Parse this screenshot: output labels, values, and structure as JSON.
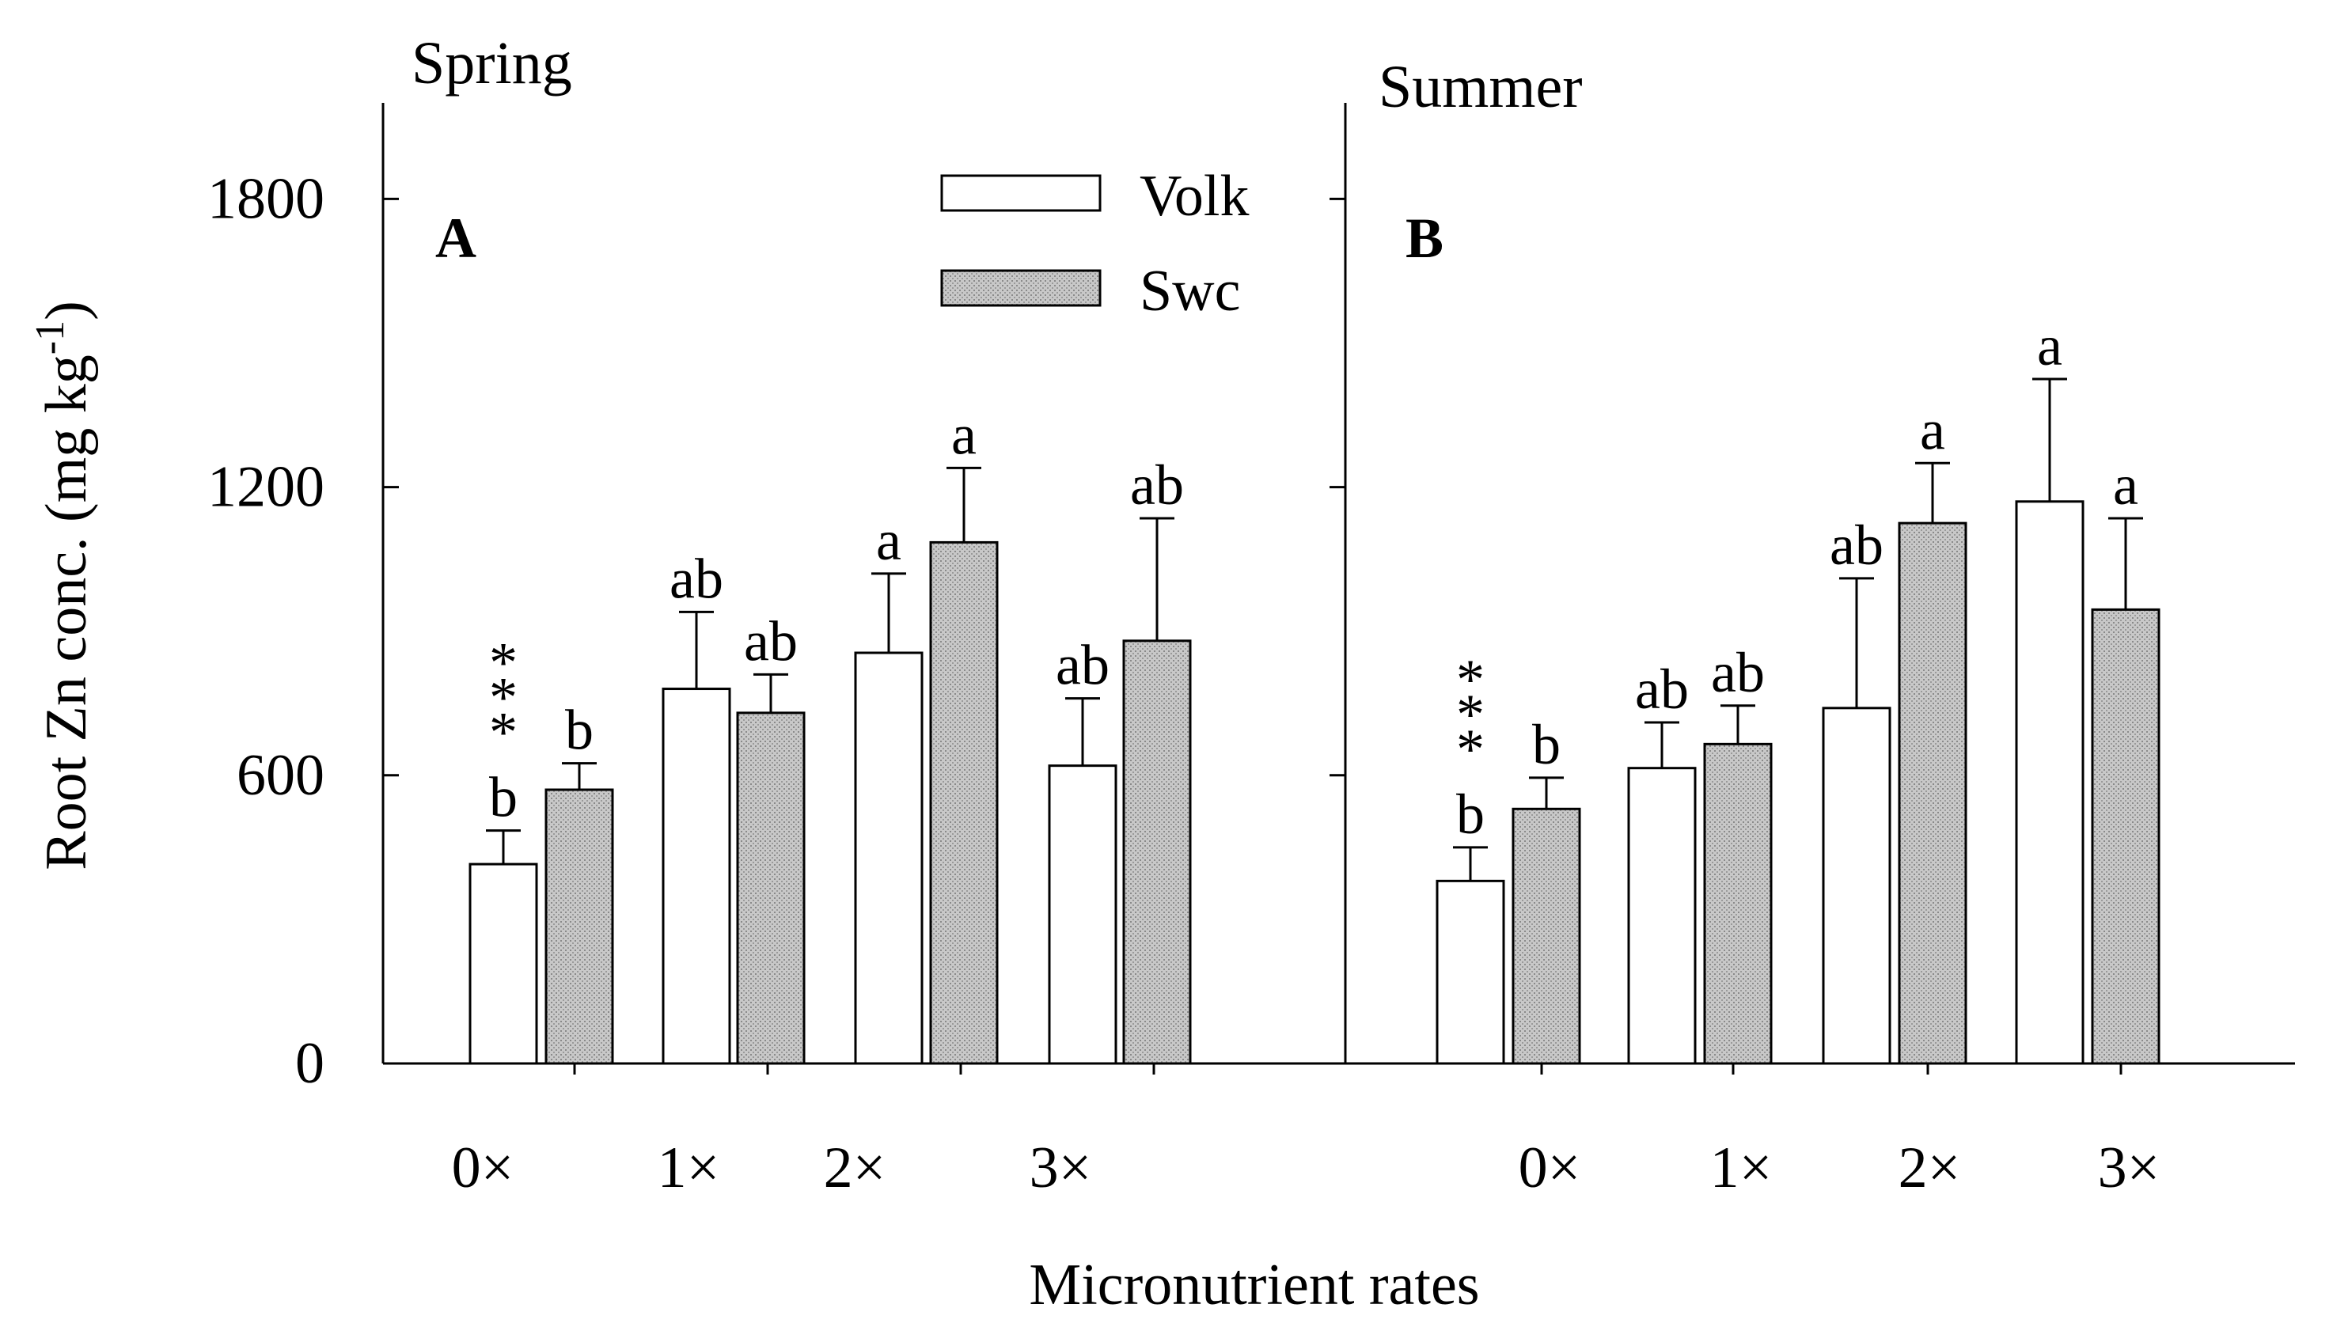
{
  "ylabel": "Root Zn conc. (mg kg-1)",
  "ylabel_parts": {
    "main": "Root Zn conc. (mg kg",
    "sup": "-1",
    "close": ")"
  },
  "xlabel": "Micronutrient rates",
  "legend": {
    "position": "top-center",
    "entries": [
      "Volk",
      "Swc"
    ]
  },
  "colors": {
    "volk_fill": "#ffffff",
    "swc_fill": "#d0d0d0",
    "stroke": "#000000"
  },
  "chart_data": [
    {
      "type": "bar",
      "panel": "A",
      "title": "Spring",
      "categories": [
        "0×",
        "1×",
        "2×",
        "3×"
      ],
      "ylim": [
        0,
        2000
      ],
      "yticks": [
        0,
        600,
        1200,
        1800
      ],
      "series": [
        {
          "name": "Volk",
          "values": [
            415,
            780,
            855,
            620
          ],
          "errors": [
            70,
            160,
            165,
            140
          ],
          "labels": [
            "b",
            "ab",
            "a",
            "ab"
          ]
        },
        {
          "name": "Swc",
          "values": [
            570,
            730,
            1085,
            880
          ],
          "errors": [
            55,
            80,
            155,
            255
          ],
          "labels": [
            "b",
            "ab",
            "a",
            "ab"
          ]
        }
      ],
      "significance": [
        "***",
        "",
        "",
        ""
      ]
    },
    {
      "type": "bar",
      "panel": "B",
      "title": "Summer",
      "categories": [
        "0×",
        "1×",
        "2×",
        "3×"
      ],
      "ylim": [
        0,
        2000
      ],
      "yticks": [
        0,
        600,
        1200,
        1800
      ],
      "series": [
        {
          "name": "Volk",
          "values": [
            380,
            615,
            740,
            1170
          ],
          "errors": [
            70,
            95,
            270,
            255
          ],
          "labels": [
            "b",
            "ab",
            "ab",
            "a"
          ]
        },
        {
          "name": "Swc",
          "values": [
            530,
            665,
            1125,
            945
          ],
          "errors": [
            65,
            80,
            125,
            190
          ],
          "labels": [
            "b",
            "ab",
            "a",
            "a"
          ]
        }
      ],
      "significance": [
        "***",
        "",
        "",
        ""
      ]
    }
  ]
}
